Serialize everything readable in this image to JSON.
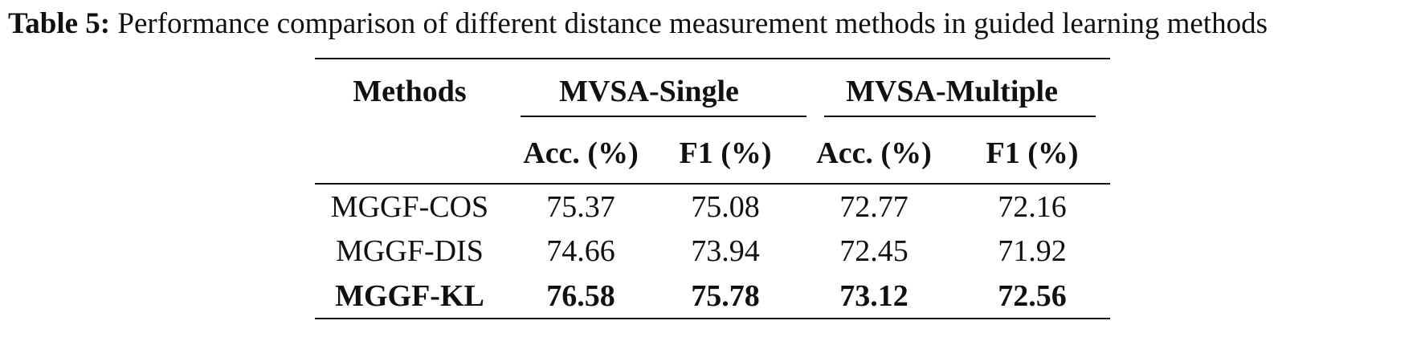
{
  "caption": {
    "label": "Table 5:",
    "text": "Performance comparison of different distance measurement methods in guided learning methods"
  },
  "table": {
    "method_header": "Methods",
    "groups": [
      "MVSA-Single",
      "MVSA-Multiple"
    ],
    "metrics": [
      "Acc. (%)",
      "F1 (%)",
      "Acc. (%)",
      "F1 (%)"
    ],
    "rows": [
      {
        "method": "MGGF-COS",
        "values": [
          "75.37",
          "75.08",
          "72.77",
          "72.16"
        ],
        "bold": false
      },
      {
        "method": "MGGF-DIS",
        "values": [
          "74.66",
          "73.94",
          "72.45",
          "71.92"
        ],
        "bold": false
      },
      {
        "method": "MGGF-KL",
        "values": [
          "76.58",
          "75.78",
          "73.12",
          "72.56"
        ],
        "bold": true
      }
    ]
  }
}
